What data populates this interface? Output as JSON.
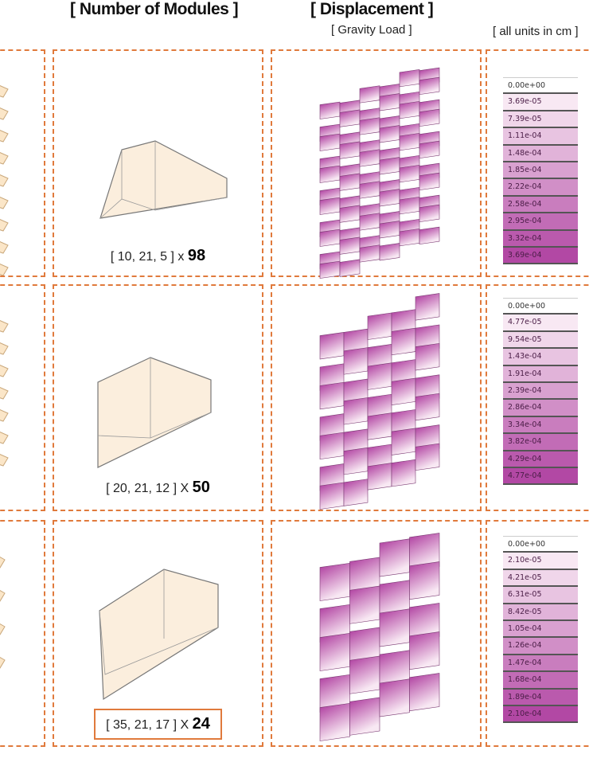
{
  "headers": {
    "modules": "[ Number of Modules ]",
    "displacement": "[ Displacement ]",
    "load": "[ Gravity Load ]",
    "units": "[ all units in cm ]"
  },
  "rows": [
    {
      "dims": "[ 10, 21, 5 ] x",
      "count": "98",
      "boxed": false,
      "legend": [
        "0.00e+00",
        "3.69e-05",
        "7.39e-05",
        "1.11e-04",
        "1.48e-04",
        "1.85e-04",
        "2.22e-04",
        "2.58e-04",
        "2.95e-04",
        "3.32e-04",
        "3.69e-04"
      ]
    },
    {
      "dims": "[ 20, 21, 12 ] X",
      "count": "50",
      "boxed": false,
      "legend": [
        "0.00e+00",
        "4.77e-05",
        "9.54e-05",
        "1.43e-04",
        "1.91e-04",
        "2.39e-04",
        "2.86e-04",
        "3.34e-04",
        "3.82e-04",
        "4.29e-04",
        "4.77e-04"
      ]
    },
    {
      "dims": "[ 35, 21, 17 ] X",
      "count": "24",
      "boxed": true,
      "legend": [
        "0.00e+00",
        "2.10e-05",
        "4.21e-05",
        "6.31e-05",
        "8.42e-05",
        "1.05e-04",
        "1.26e-04",
        "1.47e-04",
        "1.68e-04",
        "1.89e-04",
        "2.10e-04"
      ]
    }
  ],
  "colors": {
    "border": "#e07a3c",
    "module_fill": "#fbeedd",
    "disp_low": "#f8e8f3",
    "disp_high": "#b347a4"
  }
}
